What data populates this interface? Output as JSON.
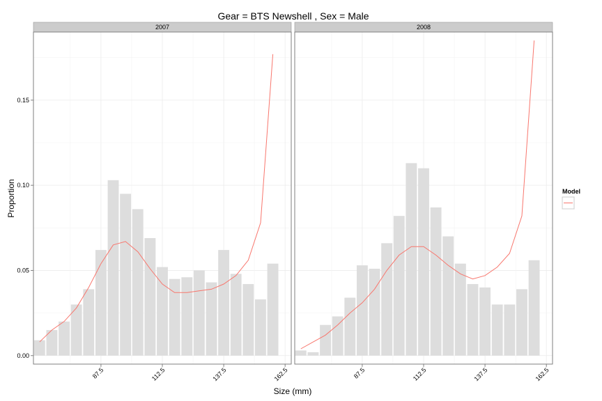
{
  "chart_data": {
    "type": "bar",
    "title": "Gear = BTS Newshell , Sex = Male",
    "xlabel": "Size (mm)",
    "ylabel": "Proportion",
    "x_ticks": [
      87.5,
      112.5,
      137.5,
      162.5
    ],
    "y_ticks": [
      0.0,
      0.05,
      0.1,
      0.15
    ],
    "y_tick_labels": [
      "0.00",
      "0.05",
      "0.10",
      "0.15"
    ],
    "xlim": [
      60,
      165
    ],
    "ylim": [
      -0.005,
      0.19
    ],
    "grid": true,
    "legend": {
      "title": "Model",
      "placement": "right",
      "entries": [
        {
          "name": "",
          "color": "#f8766d"
        }
      ]
    },
    "bar_color": "#dddddd",
    "line_color": "#f8766d",
    "panels": [
      {
        "strip": "2007",
        "x": [
          62.5,
          67.5,
          72.5,
          77.5,
          82.5,
          87.5,
          92.5,
          97.5,
          102.5,
          107.5,
          112.5,
          117.5,
          122.5,
          127.5,
          132.5,
          137.5,
          142.5,
          147.5,
          152.5,
          157.5,
          162.5
        ],
        "observed": [
          0.009,
          0.015,
          0.02,
          0.03,
          0.039,
          0.062,
          0.103,
          0.095,
          0.086,
          0.069,
          0.052,
          0.045,
          0.046,
          0.05,
          0.043,
          0.062,
          0.048,
          0.042,
          0.033,
          0.054,
          null
        ],
        "model": [
          0.008,
          0.015,
          0.02,
          0.028,
          0.04,
          0.054,
          0.065,
          0.067,
          0.061,
          0.051,
          0.042,
          0.037,
          0.037,
          0.038,
          0.039,
          0.042,
          0.047,
          0.056,
          0.078,
          0.177,
          null
        ]
      },
      {
        "strip": "2008",
        "x": [
          62.5,
          67.5,
          72.5,
          77.5,
          82.5,
          87.5,
          92.5,
          97.5,
          102.5,
          107.5,
          112.5,
          117.5,
          122.5,
          127.5,
          132.5,
          137.5,
          142.5,
          147.5,
          152.5,
          157.5,
          162.5
        ],
        "observed": [
          0.003,
          0.002,
          0.018,
          0.023,
          0.034,
          0.053,
          0.051,
          0.066,
          0.082,
          0.113,
          0.11,
          0.087,
          0.07,
          0.054,
          0.042,
          0.04,
          0.03,
          0.03,
          0.039,
          0.056,
          null
        ],
        "model": [
          0.004,
          0.008,
          0.012,
          0.018,
          0.025,
          0.031,
          0.039,
          0.05,
          0.059,
          0.064,
          0.064,
          0.059,
          0.053,
          0.048,
          0.045,
          0.047,
          0.052,
          0.06,
          0.082,
          0.185,
          null
        ]
      }
    ]
  }
}
